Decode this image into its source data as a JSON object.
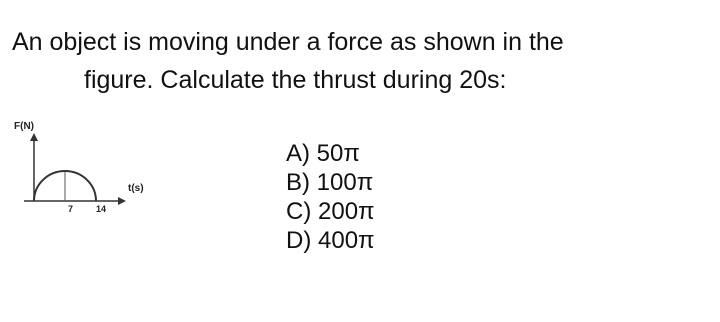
{
  "question": {
    "lines": [
      "An object is moving under a force as shown in the",
      "figure. Calculate the thrust during 20s:"
    ]
  },
  "figure": {
    "y_label": "F(N)",
    "x_label": "t(s)",
    "ticks": [
      "7",
      "14"
    ]
  },
  "options": [
    "A) 50π",
    "B) 100π",
    "C) 200π",
    "D) 400π"
  ]
}
